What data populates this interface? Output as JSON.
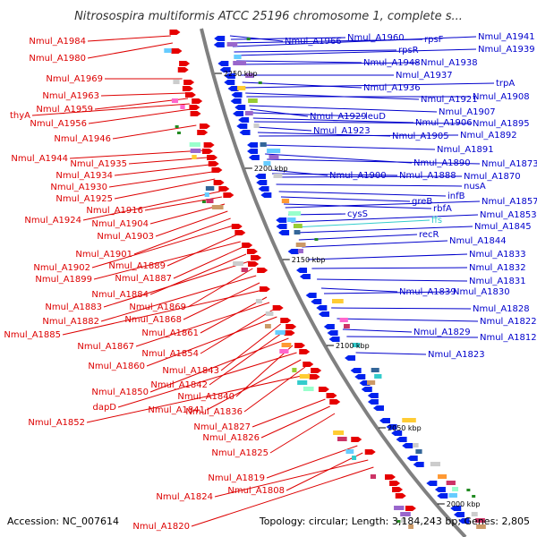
{
  "title": "Nitrosospira multiformis ATCC 25196 chromosome 1, complete s...",
  "footer": {
    "accession": "Accession: NC_007614",
    "summary": "Topology: circular; Length: 3,184,243 bp; Genes: 2,805"
  },
  "colors": {
    "left_label": "#dd0000",
    "right_label": "#0000cc",
    "rna_label": "#33cccc",
    "backbone": "#808080",
    "forward_feature": "#e60000",
    "reverse_feature": "#0022ee"
  },
  "scale_marks": [
    "2250 kbp",
    "2200 kbp",
    "2150 kbp",
    "2100 kbp",
    "2050 kbp",
    "2000 kbp"
  ],
  "left_labels": [
    "Nmul_A1984",
    "Nmul_A1980",
    "Nmul_A1969",
    "Nmul_A1963",
    "Nmul_A1959",
    "thyA",
    "Nmul_A1956",
    "Nmul_A1946",
    "Nmul_A1944",
    "Nmul_A1935",
    "Nmul_A1934",
    "Nmul_A1930",
    "Nmul_A1925",
    "Nmul_A1924",
    "Nmul_A1916",
    "Nmul_A1904",
    "Nmul_A1903",
    "Nmul_A1901",
    "Nmul_A1902",
    "Nmul_A1889",
    "Nmul_A1899",
    "Nmul_A1887",
    "Nmul_A1884",
    "Nmul_A1883",
    "Nmul_A1869",
    "Nmul_A1882",
    "Nmul_A1868",
    "Nmul_A1885",
    "Nmul_A1861",
    "Nmul_A1867",
    "Nmul_A1854",
    "Nmul_A1860",
    "Nmul_A1843",
    "Nmul_A1842",
    "Nmul_A1850",
    "Nmul_A1840",
    "dapD",
    "Nmul_A1841",
    "Nmul_A1836",
    "Nmul_A1852",
    "Nmul_A1827",
    "Nmul_A1826",
    "Nmul_A1825",
    "Nmul_A1819",
    "Nmul_A1808",
    "Nmul_A1824",
    "Nmul_A1820"
  ],
  "right_labels": [
    "Nmul_A1966",
    "Nmul_A1960",
    "rpsF",
    "Nmul_A1941",
    "rpsR",
    "Nmul_A1939",
    "Nmul_A1948",
    "Nmul_A1938",
    "Nmul_A1937",
    "Nmul_A1936",
    "trpA",
    "Nmul_A1921",
    "Nmul_A1908",
    "Nmul_A1907",
    "Nmul_A1929",
    "leuD",
    "Nmul_A1906",
    "Nmul_A1895",
    "Nmul_A1923",
    "Nmul_A1905",
    "Nmul_A1892",
    "Nmul_A1891",
    "Nmul_A1890",
    "Nmul_A1873",
    "Nmul_A1900",
    "Nmul_A1888",
    "Nmul_A1870",
    "nusA",
    "infB",
    "greB",
    "rbfA",
    "Nmul_A1857",
    "cysS",
    "Nmul_A1853",
    "ffs",
    "Nmul_A1845",
    "recR",
    "Nmul_A1844",
    "Nmul_A1833",
    "Nmul_A1832",
    "Nmul_A1831",
    "Nmul_A1839",
    "Nmul_A1830",
    "Nmul_A1828",
    "Nmul_A1822",
    "Nmul_A1829",
    "Nmul_A1812",
    "Nmul_A1823"
  ]
}
